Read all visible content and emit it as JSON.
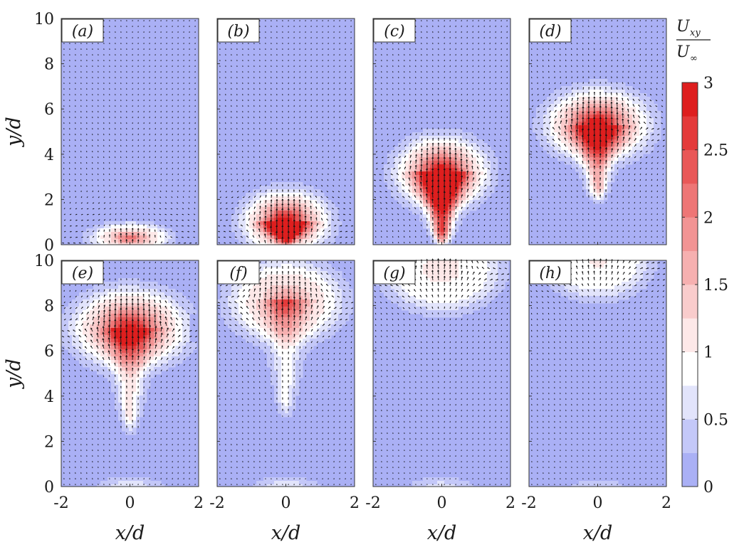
{
  "chart_data": {
    "type": "heatmap",
    "subtype": "velocity-magnitude contours with quiver arrows",
    "layout": {
      "rows": 2,
      "cols": 4
    },
    "xlabel": "x/d",
    "ylabel": "y/d",
    "xlim": [
      -2,
      2
    ],
    "ylim": [
      0,
      10
    ],
    "xticks": [
      "-2",
      "0",
      "2"
    ],
    "yticks": [
      "0",
      "2",
      "4",
      "6",
      "8",
      "10"
    ],
    "colorbar": {
      "title_numerator": "U",
      "title_numerator_sub": "xy",
      "title_denominator": "U",
      "title_denominator_sub": "∞",
      "range": [
        0,
        3
      ],
      "ticks": [
        "0",
        "0.5",
        "1",
        "1.5",
        "2",
        "2.5",
        "3"
      ],
      "levels": [
        0,
        0.25,
        0.5,
        0.75,
        1.0,
        1.25,
        1.5,
        1.75,
        2.0,
        2.25,
        2.5,
        2.75,
        3.0
      ],
      "colors": [
        "#aab0f5",
        "#c4c8f8",
        "#e2e4fb",
        "#ffffff",
        "#fde8e8",
        "#f9cccc",
        "#f6b0b0",
        "#f29494",
        "#ee7676",
        "#e95858",
        "#e43a3a",
        "#de1e1e"
      ]
    },
    "panels": [
      {
        "label": "(a)",
        "head_y": 0.3,
        "head_peak": 2.0,
        "head_rx": 0.7,
        "head_ry": 0.4,
        "tail_y": 0.0,
        "tail_peak": 0.0,
        "bottom_glow": 0.0,
        "arrow_gain": 0.6
      },
      {
        "label": "(b)",
        "head_y": 1.0,
        "head_peak": 2.9,
        "head_rx": 0.8,
        "head_ry": 0.9,
        "tail_y": 0.0,
        "tail_peak": 2.2,
        "bottom_glow": 0.0,
        "arrow_gain": 0.7
      },
      {
        "label": "(c)",
        "head_y": 3.2,
        "head_peak": 2.9,
        "head_rx": 0.85,
        "head_ry": 1.0,
        "tail_y": 0.0,
        "tail_peak": 2.4,
        "bottom_glow": 0.0,
        "arrow_gain": 0.75
      },
      {
        "label": "(d)",
        "head_y": 5.3,
        "head_peak": 2.9,
        "head_rx": 0.95,
        "head_ry": 1.0,
        "tail_y": 2.0,
        "tail_peak": 1.5,
        "bottom_glow": 0.0,
        "arrow_gain": 0.8
      },
      {
        "label": "(e)",
        "head_y": 7.0,
        "head_peak": 2.7,
        "head_rx": 1.05,
        "head_ry": 1.1,
        "tail_y": 2.5,
        "tail_peak": 1.0,
        "bottom_glow": 0.6,
        "arrow_gain": 0.85
      },
      {
        "label": "(f)",
        "head_y": 8.2,
        "head_peak": 1.7,
        "head_rx": 1.0,
        "head_ry": 1.1,
        "tail_y": 3.2,
        "tail_peak": 0.75,
        "bottom_glow": 0.6,
        "arrow_gain": 0.9
      },
      {
        "label": "(g)",
        "head_y": 9.6,
        "head_peak": 1.1,
        "head_rx": 1.0,
        "head_ry": 1.1,
        "tail_y": 0.0,
        "tail_peak": 0.0,
        "bottom_glow": 0.5,
        "arrow_gain": 1.0
      },
      {
        "label": "(h)",
        "head_y": 10.0,
        "head_peak": 0.95,
        "head_rx": 0.9,
        "head_ry": 1.0,
        "tail_y": 0.0,
        "tail_peak": 0.0,
        "bottom_glow": 0.3,
        "arrow_gain": 1.05
      }
    ]
  }
}
